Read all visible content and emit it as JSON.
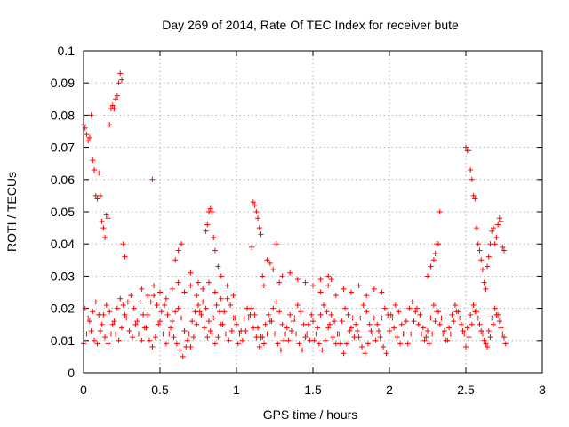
{
  "chart_data": {
    "type": "scatter",
    "title": "Day 269 of 2014, Rate Of TEC Index for receiver bute",
    "xlabel": "GPS time / hours",
    "ylabel": "ROTI / TECUs",
    "xlim": [
      0,
      3
    ],
    "ylim": [
      0,
      0.1
    ],
    "x_ticks": [
      "0",
      "0.5",
      "1",
      "1.5",
      "2",
      "2.5",
      "3"
    ],
    "y_ticks": [
      "0",
      "0.01",
      "0.02",
      "0.03",
      "0.04",
      "0.05",
      "0.06",
      "0.07",
      "0.08",
      "0.09",
      "0.1"
    ],
    "grid": true,
    "marker": "+",
    "color": "#ff0000",
    "series": [
      {
        "x": [
          0.0,
          0.01,
          0.02,
          0.03,
          0.04,
          0.05,
          0.06,
          0.07,
          0.08,
          0.09,
          0.1,
          0.11,
          0.12,
          0.13,
          0.14,
          0.15,
          0.16,
          0.17,
          0.18,
          0.19,
          0.2,
          0.21,
          0.22,
          0.23,
          0.24,
          0.25,
          0.26,
          0.27,
          0.0,
          0.02,
          0.04,
          0.06,
          0.08,
          0.1,
          0.12,
          0.14,
          0.16,
          0.18,
          0.2,
          0.22,
          0.24,
          0.26,
          0.28,
          0.3,
          0.32,
          0.34,
          0.01,
          0.03,
          0.05,
          0.07,
          0.09,
          0.11,
          0.13,
          0.15,
          0.17,
          0.19,
          0.21,
          0.23,
          0.25,
          0.27,
          0.29,
          0.31,
          0.33,
          0.35,
          0.36,
          0.38,
          0.4,
          0.42,
          0.44,
          0.46,
          0.48,
          0.5,
          0.52,
          0.54,
          0.56,
          0.58,
          0.6,
          0.62,
          0.64,
          0.66,
          0.68,
          0.7,
          0.72,
          0.74,
          0.76,
          0.78,
          0.8,
          0.82,
          0.84,
          0.86,
          0.88,
          0.9,
          0.92,
          0.94,
          0.96,
          0.98,
          0.37,
          0.39,
          0.41,
          0.43,
          0.45,
          0.47,
          0.49,
          0.51,
          0.53,
          0.55,
          0.57,
          0.59,
          0.61,
          0.63,
          0.65,
          0.67,
          0.69,
          0.71,
          0.73,
          0.75,
          0.77,
          0.79,
          0.81,
          0.83,
          0.85,
          0.87,
          0.89,
          0.91,
          0.93,
          0.95,
          0.97,
          0.99,
          0.38,
          0.42,
          0.46,
          0.5,
          0.54,
          0.58,
          0.62,
          0.66,
          0.7,
          0.74,
          0.78,
          0.82,
          0.86,
          0.9,
          0.94,
          0.98,
          0.45,
          0.6,
          0.62,
          0.64,
          0.7,
          0.75,
          0.8,
          0.81,
          0.82,
          0.83,
          0.84,
          0.85,
          0.86,
          0.88,
          0.9,
          1.0,
          1.02,
          1.04,
          1.06,
          1.08,
          1.1,
          1.12,
          1.14,
          1.16,
          1.18,
          1.2,
          1.22,
          1.24,
          1.26,
          1.28,
          1.3,
          1.32,
          1.34,
          1.36,
          1.38,
          1.4,
          1.42,
          1.44,
          1.46,
          1.48,
          1.01,
          1.03,
          1.05,
          1.07,
          1.09,
          1.11,
          1.13,
          1.15,
          1.17,
          1.19,
          1.21,
          1.23,
          1.25,
          1.27,
          1.29,
          1.31,
          1.33,
          1.35,
          1.37,
          1.39,
          1.41,
          1.43,
          1.45,
          1.47,
          1.49,
          1.1,
          1.11,
          1.12,
          1.13,
          1.14,
          1.15,
          1.16,
          1.17,
          1.18,
          1.2,
          1.22,
          1.24,
          1.26,
          1.28,
          1.3,
          1.35,
          1.4,
          1.45,
          1.5,
          1.55,
          1.6,
          1.62,
          1.5,
          1.52,
          1.54,
          1.56,
          1.58,
          1.6,
          1.62,
          1.64,
          1.66,
          1.68,
          1.7,
          1.72,
          1.74,
          1.76,
          1.78,
          1.8,
          1.82,
          1.84,
          1.86,
          1.88,
          1.9,
          1.92,
          1.94,
          1.96,
          1.98,
          1.51,
          1.53,
          1.55,
          1.57,
          1.59,
          1.61,
          1.63,
          1.65,
          1.67,
          1.69,
          1.71,
          1.73,
          1.75,
          1.77,
          1.79,
          1.81,
          1.83,
          1.85,
          1.87,
          1.89,
          1.91,
          1.93,
          1.95,
          1.97,
          1.99,
          1.55,
          1.6,
          1.65,
          1.7,
          1.75,
          1.8,
          1.85,
          1.9,
          1.95,
          2.0,
          2.02,
          2.04,
          2.06,
          2.08,
          2.1,
          2.12,
          2.14,
          2.16,
          2.18,
          2.2,
          2.22,
          2.24,
          2.26,
          2.28,
          2.3,
          2.32,
          2.34,
          2.36,
          2.38,
          2.4,
          2.42,
          2.44,
          2.46,
          2.48,
          2.01,
          2.03,
          2.05,
          2.07,
          2.09,
          2.11,
          2.13,
          2.15,
          2.17,
          2.19,
          2.21,
          2.23,
          2.25,
          2.27,
          2.29,
          2.31,
          2.33,
          2.35,
          2.37,
          2.39,
          2.41,
          2.43,
          2.45,
          2.47,
          2.49,
          2.25,
          2.27,
          2.29,
          2.3,
          2.31,
          2.32,
          2.33,
          2.5,
          2.51,
          2.52,
          2.53,
          2.54,
          2.55,
          2.56,
          2.57,
          2.58,
          2.59,
          2.6,
          2.61,
          2.62,
          2.63,
          2.64,
          2.65,
          2.66,
          2.67,
          2.68,
          2.69,
          2.7,
          2.71,
          2.72,
          2.73,
          2.74,
          2.75,
          2.5,
          2.52,
          2.54,
          2.56,
          2.58,
          2.6,
          2.62,
          2.64,
          2.66,
          2.68,
          2.7,
          2.72,
          2.74,
          2.76,
          2.51,
          2.53,
          2.55,
          2.57,
          2.59,
          2.61,
          2.63,
          2.65,
          2.67,
          2.69,
          2.71,
          2.73,
          2.75
        ],
        "y": [
          0.077,
          0.076,
          0.074,
          0.072,
          0.073,
          0.08,
          0.066,
          0.063,
          0.055,
          0.054,
          0.062,
          0.055,
          0.047,
          0.045,
          0.042,
          0.049,
          0.048,
          0.077,
          0.082,
          0.083,
          0.082,
          0.085,
          0.086,
          0.09,
          0.093,
          0.091,
          0.04,
          0.036,
          0.009,
          0.012,
          0.016,
          0.019,
          0.022,
          0.018,
          0.015,
          0.011,
          0.009,
          0.012,
          0.016,
          0.02,
          0.023,
          0.021,
          0.017,
          0.013,
          0.011,
          0.015,
          0.02,
          0.017,
          0.013,
          0.01,
          0.009,
          0.013,
          0.018,
          0.021,
          0.019,
          0.015,
          0.012,
          0.01,
          0.014,
          0.018,
          0.022,
          0.024,
          0.02,
          0.016,
          0.012,
          0.01,
          0.014,
          0.018,
          0.022,
          0.024,
          0.021,
          0.016,
          0.012,
          0.009,
          0.012,
          0.016,
          0.019,
          0.02,
          0.017,
          0.013,
          0.01,
          0.008,
          0.011,
          0.015,
          0.019,
          0.022,
          0.02,
          0.016,
          0.012,
          0.009,
          0.011,
          0.015,
          0.019,
          0.023,
          0.021,
          0.017,
          0.022,
          0.018,
          0.014,
          0.01,
          0.008,
          0.011,
          0.015,
          0.019,
          0.021,
          0.018,
          0.014,
          0.011,
          0.009,
          0.007,
          0.005,
          0.008,
          0.012,
          0.016,
          0.019,
          0.021,
          0.018,
          0.014,
          0.011,
          0.013,
          0.017,
          0.021,
          0.019,
          0.015,
          0.012,
          0.01,
          0.013,
          0.017,
          0.026,
          0.024,
          0.027,
          0.025,
          0.023,
          0.026,
          0.028,
          0.025,
          0.027,
          0.024,
          0.026,
          0.028,
          0.025,
          0.023,
          0.027,
          0.024,
          0.06,
          0.035,
          0.038,
          0.04,
          0.031,
          0.028,
          0.044,
          0.046,
          0.05,
          0.051,
          0.05,
          0.042,
          0.038,
          0.033,
          0.03,
          0.015,
          0.012,
          0.01,
          0.013,
          0.017,
          0.02,
          0.018,
          0.014,
          0.011,
          0.009,
          0.012,
          0.016,
          0.02,
          0.022,
          0.019,
          0.015,
          0.012,
          0.01,
          0.013,
          0.017,
          0.021,
          0.019,
          0.015,
          0.012,
          0.01,
          0.009,
          0.013,
          0.017,
          0.02,
          0.018,
          0.014,
          0.011,
          0.008,
          0.011,
          0.015,
          0.018,
          0.016,
          0.012,
          0.009,
          0.007,
          0.01,
          0.014,
          0.018,
          0.016,
          0.012,
          0.009,
          0.007,
          0.011,
          0.015,
          0.018,
          0.039,
          0.053,
          0.052,
          0.05,
          0.048,
          0.045,
          0.043,
          0.03,
          0.027,
          0.035,
          0.034,
          0.032,
          0.04,
          0.028,
          0.03,
          0.031,
          0.029,
          0.028,
          0.027,
          0.029,
          0.03,
          0.029,
          0.016,
          0.012,
          0.009,
          0.007,
          0.01,
          0.014,
          0.018,
          0.016,
          0.012,
          0.009,
          0.006,
          0.009,
          0.013,
          0.017,
          0.015,
          0.011,
          0.008,
          0.006,
          0.009,
          0.013,
          0.017,
          0.015,
          0.011,
          0.008,
          0.006,
          0.01,
          0.014,
          0.018,
          0.021,
          0.019,
          0.015,
          0.011,
          0.009,
          0.012,
          0.016,
          0.02,
          0.018,
          0.014,
          0.011,
          0.013,
          0.017,
          0.021,
          0.019,
          0.015,
          0.012,
          0.01,
          0.013,
          0.017,
          0.02,
          0.018,
          0.025,
          0.027,
          0.024,
          0.026,
          0.025,
          0.027,
          0.024,
          0.026,
          0.025,
          0.013,
          0.017,
          0.021,
          0.019,
          0.015,
          0.012,
          0.009,
          0.012,
          0.016,
          0.02,
          0.018,
          0.014,
          0.011,
          0.009,
          0.012,
          0.016,
          0.019,
          0.017,
          0.013,
          0.01,
          0.012,
          0.016,
          0.019,
          0.017,
          0.013,
          0.018,
          0.014,
          0.011,
          0.009,
          0.012,
          0.016,
          0.02,
          0.022,
          0.019,
          0.015,
          0.012,
          0.01,
          0.013,
          0.017,
          0.021,
          0.019,
          0.015,
          0.012,
          0.01,
          0.014,
          0.018,
          0.021,
          0.019,
          0.015,
          0.012,
          0.03,
          0.033,
          0.035,
          0.037,
          0.04,
          0.04,
          0.05,
          0.07,
          0.069,
          0.069,
          0.063,
          0.06,
          0.055,
          0.054,
          0.045,
          0.04,
          0.038,
          0.035,
          0.032,
          0.028,
          0.026,
          0.033,
          0.036,
          0.04,
          0.044,
          0.045,
          0.04,
          0.042,
          0.046,
          0.048,
          0.047,
          0.039,
          0.038,
          0.008,
          0.011,
          0.015,
          0.019,
          0.017,
          0.013,
          0.01,
          0.008,
          0.011,
          0.015,
          0.018,
          0.016,
          0.012,
          0.009,
          0.014,
          0.018,
          0.021,
          0.019,
          0.015,
          0.012,
          0.009,
          0.013,
          0.017,
          0.02,
          0.018,
          0.014,
          0.011
        ]
      }
    ]
  }
}
